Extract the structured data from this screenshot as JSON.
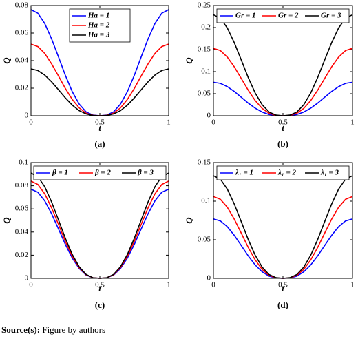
{
  "chart_data": [
    {
      "type": "line",
      "caption": "(a)",
      "x_label": "t",
      "y_label": "Q",
      "x": [
        0,
        0.05,
        0.1,
        0.15,
        0.2,
        0.25,
        0.3,
        0.35,
        0.4,
        0.45,
        0.5,
        0.55,
        0.6,
        0.65,
        0.7,
        0.75,
        0.8,
        0.85,
        0.9,
        0.95,
        1
      ],
      "xlim": [
        0,
        1
      ],
      "xticks": [
        0,
        0.5,
        1
      ],
      "ylim": [
        0,
        0.08
      ],
      "yticks": [
        0,
        0.02,
        0.04,
        0.06,
        0.08
      ],
      "legend": "upper center",
      "legend_columns": 1,
      "series": [
        {
          "name": "Ha = 1",
          "color": "#0000ff",
          "values": [
            0.077,
            0.0744,
            0.0669,
            0.0557,
            0.0426,
            0.0292,
            0.0174,
            0.0085,
            0.0028,
            0.0005,
            0,
            0.0005,
            0.0028,
            0.0085,
            0.0174,
            0.0292,
            0.0426,
            0.0557,
            0.0669,
            0.0744,
            0.077
          ]
        },
        {
          "name": "Ha = 2",
          "color": "#ff0000",
          "values": [
            0.052,
            0.0502,
            0.0452,
            0.0376,
            0.0288,
            0.0197,
            0.0118,
            0.0057,
            0.0019,
            0.0003,
            0,
            0.0003,
            0.0019,
            0.0057,
            0.0118,
            0.0197,
            0.0288,
            0.0376,
            0.0452,
            0.0502,
            0.052
          ]
        },
        {
          "name": "Ha = 3",
          "color": "#000000",
          "values": [
            0.034,
            0.0328,
            0.0295,
            0.0246,
            0.0188,
            0.0129,
            0.0077,
            0.0037,
            0.0013,
            0.0002,
            0,
            0.0002,
            0.0013,
            0.0037,
            0.0077,
            0.0129,
            0.0188,
            0.0246,
            0.0295,
            0.0328,
            0.034
          ]
        }
      ]
    },
    {
      "type": "line",
      "caption": "(b)",
      "x_label": "t",
      "y_label": "Q",
      "x": [
        0,
        0.05,
        0.1,
        0.15,
        0.2,
        0.25,
        0.3,
        0.35,
        0.4,
        0.45,
        0.5,
        0.55,
        0.6,
        0.65,
        0.7,
        0.75,
        0.8,
        0.85,
        0.9,
        0.95,
        1
      ],
      "xlim": [
        0,
        1
      ],
      "xticks": [
        0,
        0.5,
        1
      ],
      "ylim": [
        0,
        0.25
      ],
      "yticks": [
        0,
        0.05,
        0.1,
        0.15,
        0.2,
        0.25
      ],
      "legend": "upper center",
      "legend_columns": 3,
      "series": [
        {
          "name": "Gr = 1",
          "color": "#0000ff",
          "values": [
            0.076,
            0.0734,
            0.066,
            0.055,
            0.042,
            0.0288,
            0.0172,
            0.0084,
            0.0028,
            0.0005,
            0,
            0.0005,
            0.0028,
            0.0084,
            0.0172,
            0.0288,
            0.042,
            0.055,
            0.066,
            0.0734,
            0.076
          ]
        },
        {
          "name": "Gr = 2",
          "color": "#ff0000",
          "values": [
            0.153,
            0.1478,
            0.133,
            0.1108,
            0.0846,
            0.058,
            0.0346,
            0.0168,
            0.0057,
            0.0009,
            0,
            0.0009,
            0.0057,
            0.0168,
            0.0346,
            0.058,
            0.0846,
            0.1108,
            0.133,
            0.1478,
            0.153
          ]
        },
        {
          "name": "Gr = 3",
          "color": "#000000",
          "values": [
            0.229,
            0.2212,
            0.199,
            0.1658,
            0.1266,
            0.0868,
            0.0518,
            0.0252,
            0.0085,
            0.0014,
            0,
            0.0014,
            0.0085,
            0.0252,
            0.0518,
            0.0868,
            0.1266,
            0.1658,
            0.199,
            0.2212,
            0.229
          ]
        }
      ]
    },
    {
      "type": "line",
      "caption": "(c)",
      "x_label": "t",
      "y_label": "Q",
      "x": [
        0,
        0.05,
        0.1,
        0.15,
        0.2,
        0.25,
        0.3,
        0.35,
        0.4,
        0.45,
        0.5,
        0.55,
        0.6,
        0.65,
        0.7,
        0.75,
        0.8,
        0.85,
        0.9,
        0.95,
        1
      ],
      "xlim": [
        0,
        1
      ],
      "xticks": [
        0,
        0.5,
        1
      ],
      "ylim": [
        0,
        0.1
      ],
      "yticks": [
        0,
        0.02,
        0.04,
        0.06,
        0.08,
        0.1
      ],
      "legend": "upper center",
      "legend_columns": 3,
      "series": [
        {
          "name": "β = 1",
          "color": "#0000ff",
          "values": [
            0.077,
            0.0744,
            0.0669,
            0.0557,
            0.0426,
            0.0292,
            0.0174,
            0.0085,
            0.0028,
            0.0005,
            0,
            0.0005,
            0.0028,
            0.0085,
            0.0174,
            0.0292,
            0.0426,
            0.0557,
            0.0669,
            0.0744,
            0.077
          ]
        },
        {
          "name": "β = 2",
          "color": "#ff0000",
          "values": [
            0.084,
            0.0811,
            0.073,
            0.0608,
            0.0465,
            0.0318,
            0.019,
            0.0092,
            0.0031,
            0.0005,
            0,
            0.0005,
            0.0031,
            0.0092,
            0.019,
            0.0318,
            0.0465,
            0.0608,
            0.073,
            0.0811,
            0.084
          ]
        },
        {
          "name": "β = 3",
          "color": "#000000",
          "values": [
            0.091,
            0.0879,
            0.0791,
            0.0659,
            0.0503,
            0.0345,
            0.0206,
            0.01,
            0.0034,
            0.0005,
            0,
            0.0005,
            0.0034,
            0.01,
            0.0206,
            0.0345,
            0.0503,
            0.0659,
            0.0791,
            0.0879,
            0.091
          ]
        }
      ]
    },
    {
      "type": "line",
      "caption": "(d)",
      "x_label": "t",
      "y_label": "Q",
      "x": [
        0,
        0.05,
        0.1,
        0.15,
        0.2,
        0.25,
        0.3,
        0.35,
        0.4,
        0.45,
        0.5,
        0.55,
        0.6,
        0.65,
        0.7,
        0.75,
        0.8,
        0.85,
        0.9,
        0.95,
        1
      ],
      "xlim": [
        0,
        1
      ],
      "xticks": [
        0,
        0.5,
        1
      ],
      "ylim": [
        0,
        0.15
      ],
      "yticks": [
        0,
        0.05,
        0.1,
        0.15
      ],
      "legend": "upper center",
      "legend_columns": 3,
      "series": [
        {
          "name": "λ₁ = 1",
          "color": "#0000ff",
          "values": [
            0.077,
            0.0744,
            0.0669,
            0.0557,
            0.0426,
            0.0292,
            0.0174,
            0.0085,
            0.0028,
            0.0005,
            0,
            0.0005,
            0.0028,
            0.0085,
            0.0174,
            0.0292,
            0.0426,
            0.0557,
            0.0669,
            0.0744,
            0.077
          ]
        },
        {
          "name": "λ₁ = 2",
          "color": "#ff0000",
          "values": [
            0.106,
            0.1024,
            0.0921,
            0.0767,
            0.0586,
            0.0402,
            0.024,
            0.0117,
            0.0039,
            0.0006,
            0,
            0.0006,
            0.0039,
            0.0117,
            0.024,
            0.0402,
            0.0586,
            0.0767,
            0.0921,
            0.1024,
            0.106
          ]
        },
        {
          "name": "λ₁ = 3",
          "color": "#000000",
          "values": [
            0.133,
            0.1285,
            0.1156,
            0.0963,
            0.0735,
            0.0504,
            0.0301,
            0.0146,
            0.0049,
            0.0008,
            0,
            0.0008,
            0.0049,
            0.0146,
            0.0301,
            0.0504,
            0.0735,
            0.0963,
            0.1156,
            0.1285,
            0.133
          ]
        }
      ]
    }
  ],
  "source": {
    "label": "Source(s):",
    "text": "Figure by authors"
  }
}
